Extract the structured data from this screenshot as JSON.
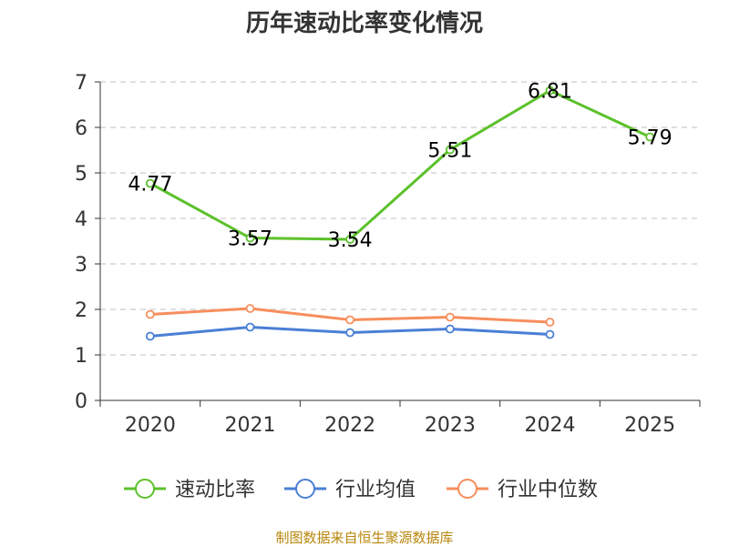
{
  "chart_data": {
    "type": "line",
    "title": "历年速动比率变化情况",
    "xlabel": "",
    "ylabel": "",
    "categories": [
      "2020",
      "2021",
      "2022",
      "2023",
      "2024",
      "2025"
    ],
    "ylim": [
      0,
      7
    ],
    "yticks": [
      0,
      1,
      2,
      3,
      4,
      5,
      6,
      7
    ],
    "grid": true,
    "legend_position": "bottom",
    "series": [
      {
        "name": "速动比率",
        "color": "#5cc12b",
        "values": [
          4.77,
          3.57,
          3.54,
          5.51,
          6.81,
          5.79
        ],
        "labels": [
          "4.77",
          "3.57",
          "3.54",
          "5.51",
          "6.81",
          "5.79"
        ]
      },
      {
        "name": "行业均值",
        "color": "#4a7fd6",
        "values": [
          1.41,
          1.61,
          1.49,
          1.57,
          1.45,
          null
        ],
        "labels": []
      },
      {
        "name": "行业中位数",
        "color": "#f78e5d",
        "values": [
          1.89,
          2.02,
          1.77,
          1.83,
          1.72,
          null
        ],
        "labels": []
      }
    ]
  },
  "footer": {
    "source": "制图数据来自恒生聚源数据库"
  }
}
